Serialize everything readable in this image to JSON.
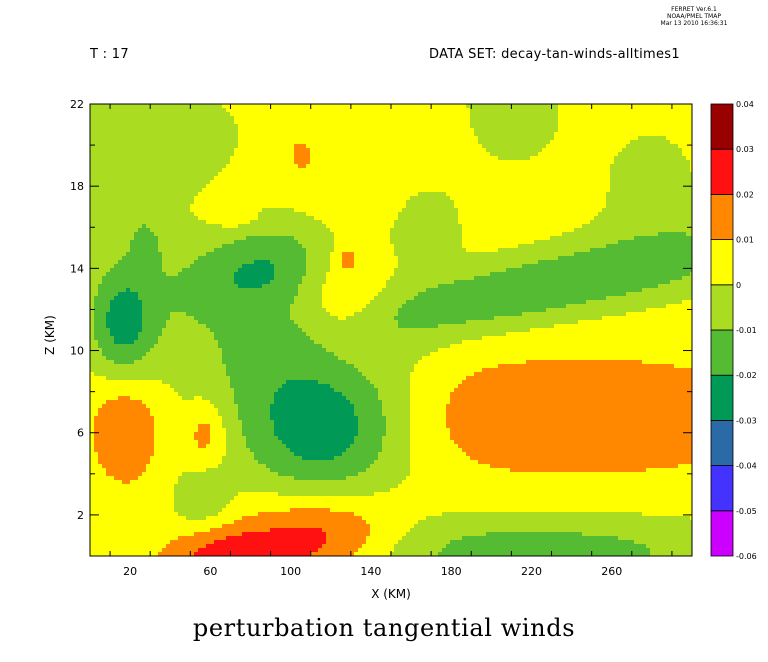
{
  "header": {
    "stamp_lines": [
      "FERRET  Ver.6.1",
      "NOAA/PMEL TMAP",
      "Mar 13 2010 16:36:31"
    ],
    "time_label": "T : 17",
    "dataset_label": "DATA SET: decay-tan-winds-alltimes1"
  },
  "chart_data": {
    "type": "heatmap",
    "title": "perturbation tangential winds",
    "xlabel": "X (KM)",
    "ylabel": "Z (KM)",
    "xlim": [
      0,
      300
    ],
    "ylim": [
      0,
      22
    ],
    "x_ticks": [
      20,
      60,
      100,
      140,
      180,
      220,
      260
    ],
    "y_ticks": [
      2,
      6,
      10,
      14,
      18,
      22
    ],
    "levels": [
      -0.06,
      -0.05,
      -0.04,
      -0.03,
      -0.02,
      -0.01,
      0,
      0.01,
      0.02,
      0.03,
      0.04
    ],
    "level_labels": [
      "-0.06",
      "-0.05",
      "-0.04",
      "-0.03",
      "-0.02",
      "-0.01",
      "0",
      "0.01",
      "0.02",
      "0.03",
      "0.04"
    ],
    "band_colors": [
      "#cc00ff",
      "#4433ff",
      "#2a6aa6",
      "#009955",
      "#55bb33",
      "#aadd22",
      "#ffff00",
      "#ff8800",
      "#ff1111",
      "#990000"
    ],
    "background_value": 0.005,
    "features": [
      {
        "x": 240,
        "y": 6.8,
        "sx": 70,
        "sy": 2.0,
        "amp": 0.014
      },
      {
        "x": 115,
        "y": 1.0,
        "sx": 28,
        "sy": 1.4,
        "amp": 0.026
      },
      {
        "x": 70,
        "y": 0.0,
        "sx": 22,
        "sy": 0.9,
        "amp": 0.022
      },
      {
        "x": 18,
        "y": 6.5,
        "sx": 12,
        "sy": 2.0,
        "amp": 0.015
      },
      {
        "x": 58,
        "y": 6.0,
        "sx": 7,
        "sy": 1.1,
        "amp": 0.014
      },
      {
        "x": 125,
        "y": 12.8,
        "sx": 17,
        "sy": 2.8,
        "amp": 0.017
      },
      {
        "x": 128,
        "y": 14.5,
        "sx": 4,
        "sy": 0.4,
        "amp": 0.012
      },
      {
        "x": 105,
        "y": 19.5,
        "sx": 3.5,
        "sy": 0.5,
        "amp": 0.012
      },
      {
        "x": 72,
        "y": 16.5,
        "sx": 7,
        "sy": 0.35,
        "amp": 0.01
      },
      {
        "x": 116,
        "y": 6.7,
        "sx": 30,
        "sy": 2.8,
        "amp": -0.036
      },
      {
        "x": 90,
        "y": 14.0,
        "sx": 35,
        "sy": 1.8,
        "amp": -0.026,
        "tilt": 0.9
      },
      {
        "x": 16,
        "y": 11.2,
        "sx": 12,
        "sy": 2.0,
        "amp": -0.027
      },
      {
        "x": 28,
        "y": 15.0,
        "sx": 5,
        "sy": 0.9,
        "amp": -0.012
      },
      {
        "x": 55,
        "y": 2.8,
        "sx": 10,
        "sy": 1.0,
        "amp": -0.013
      },
      {
        "x": 230,
        "y": 13.2,
        "sx": 50,
        "sy": 2.0,
        "amp": -0.024,
        "tilt": 0.22
      },
      {
        "x": 220,
        "y": 0.2,
        "sx": 80,
        "sy": 1.3,
        "amp": -0.02
      },
      {
        "x": 30,
        "y": 20.5,
        "sx": 35,
        "sy": 2.0,
        "amp": -0.011
      },
      {
        "x": 210,
        "y": 22,
        "sx": 20,
        "sy": 2.5,
        "amp": -0.009
      },
      {
        "x": 170,
        "y": 16.0,
        "sx": 10,
        "sy": 1.3,
        "amp": -0.01
      },
      {
        "x": 15,
        "y": 17.0,
        "sx": 20,
        "sy": 2.5,
        "amp": -0.008
      },
      {
        "x": 60,
        "y": 9.5,
        "sx": 25,
        "sy": 2.5,
        "amp": -0.006
      },
      {
        "x": 280,
        "y": 18.0,
        "sx": 25,
        "sy": 3.0,
        "amp": -0.007
      }
    ]
  }
}
